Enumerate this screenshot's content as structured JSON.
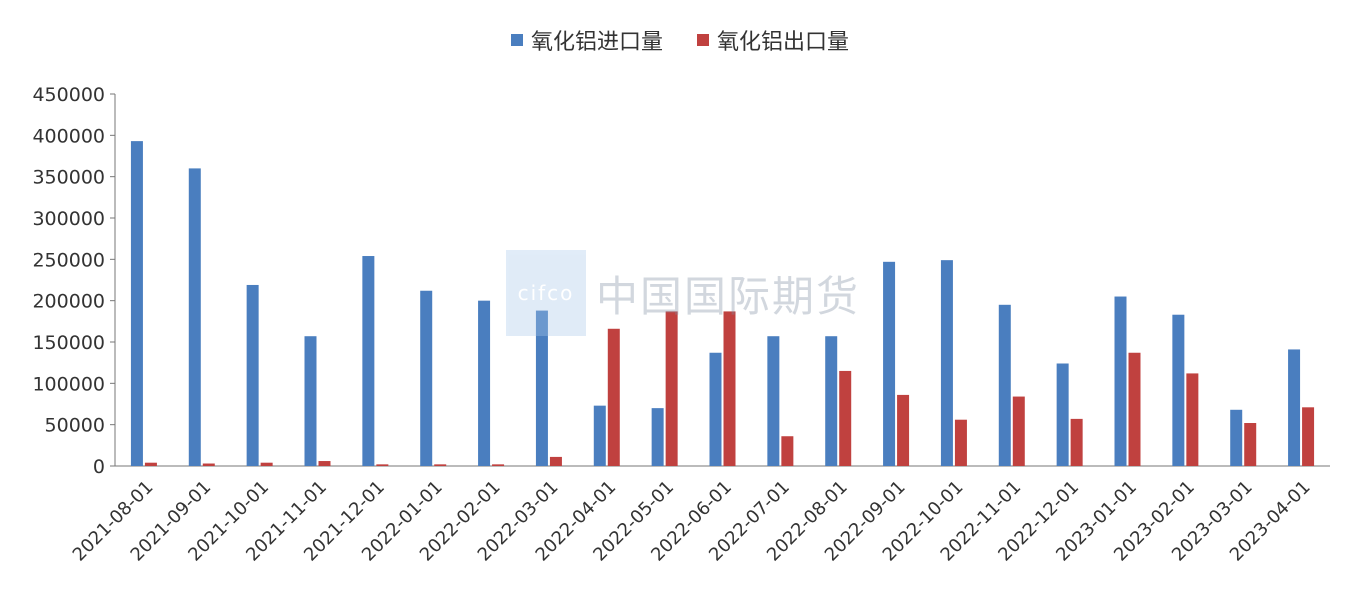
{
  "legend": {
    "import_label": "氧化铝进口量",
    "export_label": "氧化铝出口量"
  },
  "colors": {
    "import": "#4a7ebf",
    "export": "#c0413f"
  },
  "watermark": {
    "logo_text": "cifco",
    "name": "中国国际期货"
  },
  "chart_data": {
    "type": "bar",
    "categories": [
      "2021-08-01",
      "2021-09-01",
      "2021-10-01",
      "2021-11-01",
      "2021-12-01",
      "2022-01-01",
      "2022-02-01",
      "2022-03-01",
      "2022-04-01",
      "2022-05-01",
      "2022-06-01",
      "2022-07-01",
      "2022-08-01",
      "2022-09-01",
      "2022-10-01",
      "2022-11-01",
      "2022-12-01",
      "2023-01-01",
      "2023-02-01",
      "2023-03-01",
      "2023-04-01"
    ],
    "series": [
      {
        "name": "氧化铝进口量",
        "values": [
          393000,
          360000,
          219000,
          157000,
          254000,
          212000,
          200000,
          188000,
          73000,
          70000,
          137000,
          157000,
          157000,
          247000,
          249000,
          195000,
          124000,
          205000,
          183000,
          68000,
          141000
        ]
      },
      {
        "name": "氧化铝出口量",
        "values": [
          4000,
          3000,
          4000,
          6000,
          2000,
          2000,
          2000,
          11000,
          166000,
          187000,
          187000,
          36000,
          115000,
          86000,
          56000,
          84000,
          57000,
          137000,
          112000,
          52000,
          71000
        ]
      }
    ],
    "yticks": [
      "0",
      "50000",
      "100000",
      "150000",
      "200000",
      "250000",
      "300000",
      "350000",
      "400000",
      "450000"
    ],
    "ylim": [
      0,
      450000
    ],
    "grid": false,
    "legend_position": "top"
  }
}
